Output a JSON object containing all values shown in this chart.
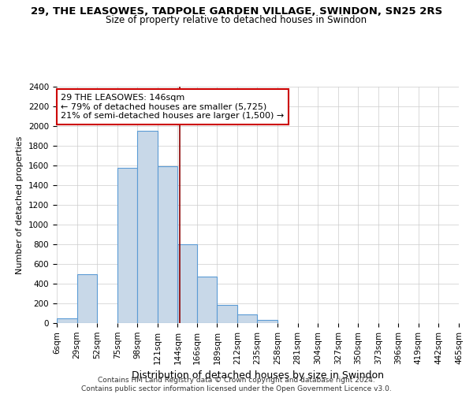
{
  "title": "29, THE LEASOWES, TADPOLE GARDEN VILLAGE, SWINDON, SN25 2RS",
  "subtitle": "Size of property relative to detached houses in Swindon",
  "xlabel": "Distribution of detached houses by size in Swindon",
  "ylabel": "Number of detached properties",
  "bin_labels": [
    "6sqm",
    "29sqm",
    "52sqm",
    "75sqm",
    "98sqm",
    "121sqm",
    "144sqm",
    "166sqm",
    "189sqm",
    "212sqm",
    "235sqm",
    "258sqm",
    "281sqm",
    "304sqm",
    "327sqm",
    "350sqm",
    "373sqm",
    "396sqm",
    "419sqm",
    "442sqm",
    "465sqm"
  ],
  "bin_edges": [
    6,
    29,
    52,
    75,
    98,
    121,
    144,
    166,
    189,
    212,
    235,
    258,
    281,
    304,
    327,
    350,
    373,
    396,
    419,
    442,
    465
  ],
  "bar_heights": [
    50,
    500,
    0,
    1575,
    1950,
    1590,
    800,
    475,
    185,
    90,
    30,
    0,
    0,
    0,
    0,
    0,
    0,
    0,
    0,
    0
  ],
  "bar_color": "#c8d8e8",
  "bar_edge_color": "#5b9bd5",
  "marker_value": 146,
  "marker_color": "#8b0000",
  "ylim": [
    0,
    2400
  ],
  "yticks": [
    0,
    200,
    400,
    600,
    800,
    1000,
    1200,
    1400,
    1600,
    1800,
    2000,
    2200,
    2400
  ],
  "annotation_title": "29 THE LEASOWES: 146sqm",
  "annotation_line1": "← 79% of detached houses are smaller (5,725)",
  "annotation_line2": "21% of semi-detached houses are larger (1,500) →",
  "annotation_box_color": "#ffffff",
  "annotation_box_edge": "#cc0000",
  "footer1": "Contains HM Land Registry data © Crown copyright and database right 2024.",
  "footer2": "Contains public sector information licensed under the Open Government Licence v3.0.",
  "bg_color": "#ffffff",
  "grid_color": "#cccccc",
  "title_fontsize": 9.5,
  "subtitle_fontsize": 8.5,
  "ylabel_fontsize": 8,
  "xlabel_fontsize": 9,
  "tick_fontsize": 7.5,
  "annotation_fontsize": 8,
  "footer_fontsize": 6.5
}
